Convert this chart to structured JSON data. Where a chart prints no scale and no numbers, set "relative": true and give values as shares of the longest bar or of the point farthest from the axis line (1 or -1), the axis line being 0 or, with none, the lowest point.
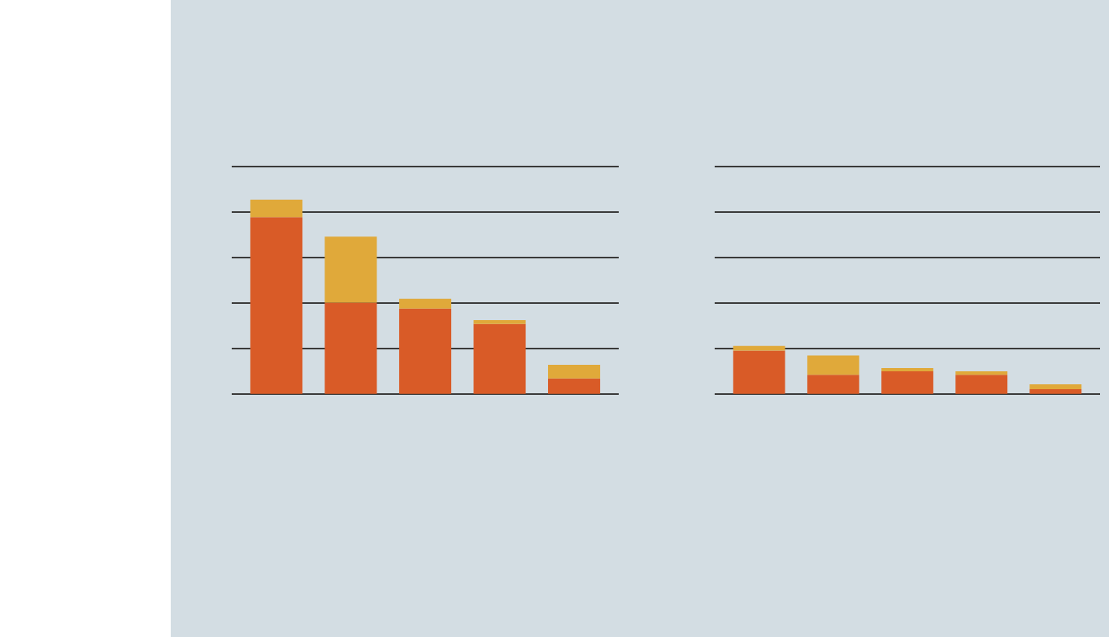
{
  "chart_data": [
    {
      "type": "bar",
      "stacked": true,
      "relative": true,
      "grid": "y",
      "categories": [
        null,
        null,
        null,
        null,
        null
      ],
      "series": [
        {
          "color": "#d95b27",
          "values": [
            0.91,
            0.47,
            0.44,
            0.36,
            0.08
          ]
        },
        {
          "color": "#e0a93a",
          "values": [
            0.09,
            0.34,
            0.05,
            0.02,
            0.07
          ]
        }
      ]
    },
    {
      "type": "bar",
      "stacked": true,
      "relative": true,
      "grid": "y",
      "categories": [
        null,
        null,
        null,
        null,
        null
      ],
      "series": [
        {
          "color": "#d95b27",
          "values": [
            0.9,
            0.4,
            0.47,
            0.4,
            0.1
          ]
        },
        {
          "color": "#e0a93a",
          "values": [
            0.1,
            0.4,
            0.07,
            0.07,
            0.1
          ]
        }
      ]
    }
  ]
}
